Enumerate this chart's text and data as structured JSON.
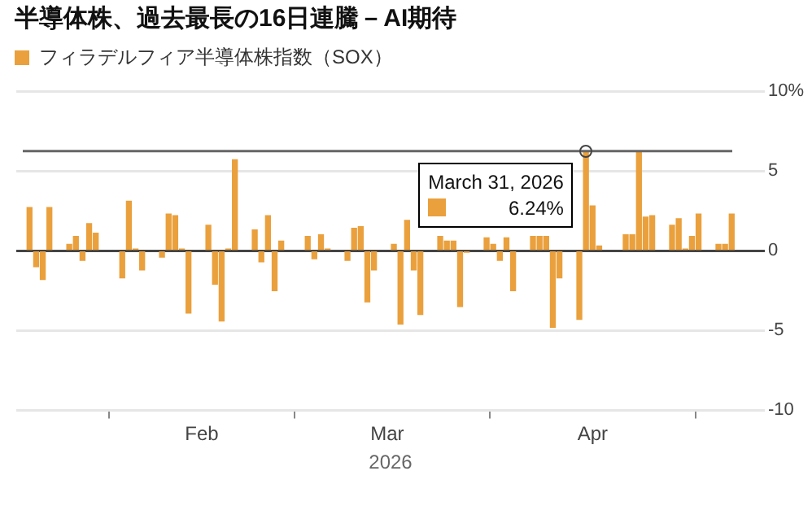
{
  "chart_data": {
    "type": "bar",
    "title": "半導体株、過去最長の16日連騰－AI期待",
    "xlabel": "2026",
    "x": [
      "2026-01-06",
      "2026-01-07",
      "2026-01-08",
      "2026-01-09",
      "2026-01-12",
      "2026-01-13",
      "2026-01-14",
      "2026-01-15",
      "2026-01-16",
      "2026-01-20",
      "2026-01-21",
      "2026-01-22",
      "2026-01-23",
      "2026-01-26",
      "2026-01-27",
      "2026-01-28",
      "2026-01-29",
      "2026-01-30",
      "2026-02-02",
      "2026-02-03",
      "2026-02-04",
      "2026-02-05",
      "2026-02-06",
      "2026-02-09",
      "2026-02-10",
      "2026-02-11",
      "2026-02-12",
      "2026-02-13",
      "2026-02-17",
      "2026-02-18",
      "2026-02-19",
      "2026-02-20",
      "2026-02-23",
      "2026-02-24",
      "2026-02-25",
      "2026-02-26",
      "2026-02-27",
      "2026-03-02",
      "2026-03-03",
      "2026-03-04",
      "2026-03-05",
      "2026-03-06",
      "2026-03-09",
      "2026-03-10",
      "2026-03-11",
      "2026-03-12",
      "2026-03-13",
      "2026-03-16",
      "2026-03-17",
      "2026-03-18",
      "2026-03-19",
      "2026-03-20",
      "2026-03-23",
      "2026-03-24",
      "2026-03-25",
      "2026-03-26",
      "2026-03-27",
      "2026-03-30",
      "2026-03-31",
      "2026-04-01",
      "2026-04-02",
      "2026-04-06",
      "2026-04-07",
      "2026-04-08",
      "2026-04-09",
      "2026-04-10",
      "2026-04-13",
      "2026-04-14",
      "2026-04-15",
      "2026-04-16",
      "2026-04-17",
      "2026-04-20",
      "2026-04-21",
      "2026-04-22"
    ],
    "series": [
      {
        "name": "フィラデルフィア半導体株指数（SOX）",
        "color": "#eaa03c",
        "values": [
          2.7,
          -1.0,
          -1.8,
          2.7,
          0.4,
          0.9,
          -0.6,
          1.7,
          1.1,
          -1.7,
          3.1,
          0.1,
          -1.2,
          -0.4,
          2.3,
          2.2,
          0.1,
          -3.9,
          1.6,
          -2.1,
          -4.4,
          0.1,
          5.7,
          1.3,
          -0.7,
          2.2,
          -2.5,
          0.6,
          0.9,
          -0.5,
          1.0,
          0.1,
          -0.6,
          1.4,
          1.5,
          -3.2,
          -1.2,
          0.4,
          -4.6,
          1.9,
          -1.2,
          -4.0,
          0.9,
          0.6,
          0.6,
          -3.5,
          -0.1,
          0.8,
          0.4,
          -0.6,
          0.8,
          -2.5,
          0.9,
          0.9,
          0.9,
          -4.8,
          -1.7,
          -4.3,
          6.24,
          2.8,
          0.3,
          1.0,
          1.0,
          6.2,
          2.1,
          2.2,
          1.6,
          2.0,
          0.1,
          0.9,
          2.3,
          0.4,
          0.4,
          2.3
        ]
      }
    ],
    "xlim": [
      "2026-01-04",
      "2026-04-27"
    ],
    "xticks": [
      {
        "value": "2026-02-01",
        "label": "Feb"
      },
      {
        "value": "2026-03-01",
        "label": "Mar"
      },
      {
        "value": "2026-04-01",
        "label": "Apr"
      }
    ],
    "ylim": [
      -10,
      10
    ],
    "yticks": [
      {
        "value": 10,
        "label": "10%"
      },
      5,
      0,
      -5,
      -10
    ],
    "grid": "y",
    "legend": "top left",
    "ref_lines": [
      {
        "axis": "y",
        "value": 6.24,
        "color": "#666666"
      }
    ],
    "annotations": [
      {
        "text": "March 31, 2026",
        "x": "2026-03-31",
        "y": 6.24
      },
      {
        "text": "6.24%",
        "x": "2026-03-31",
        "y": 6.24
      }
    ]
  }
}
